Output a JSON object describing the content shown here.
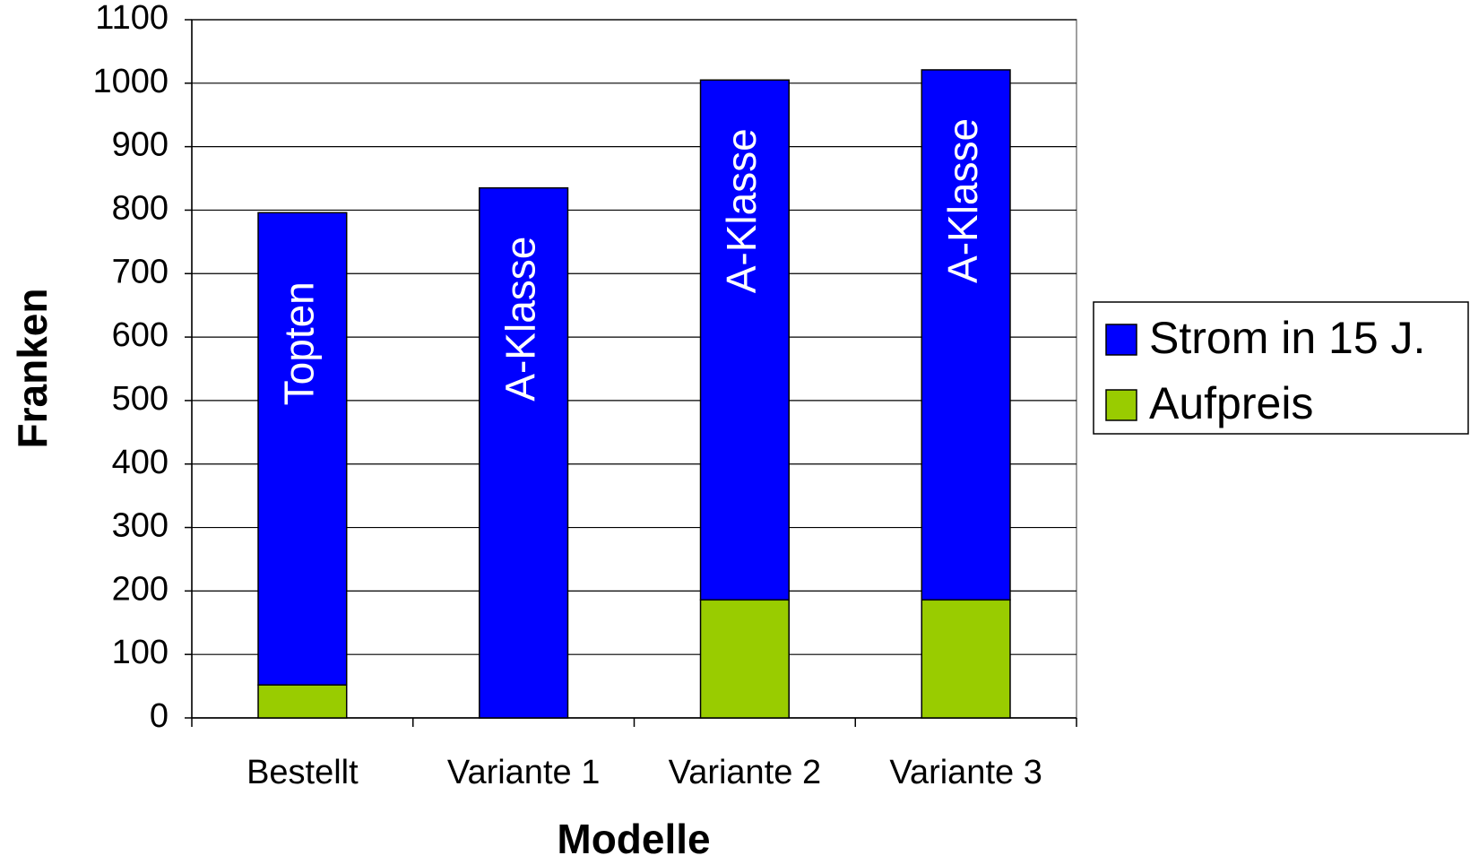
{
  "chart_data": {
    "type": "stacked_bar",
    "x_label": "Modelle",
    "y_label": "Franken",
    "categories": [
      "Bestellt",
      "Variante 1",
      "Variante 2",
      "Variante 3"
    ],
    "series": [
      {
        "name": "Strom in 15 J.",
        "color": "#0000ff",
        "values": [
          744,
          835,
          819,
          835
        ]
      },
      {
        "name": "Aufpreis",
        "color": "#99cc00",
        "values": [
          52,
          0,
          186,
          186
        ]
      }
    ],
    "bar_labels": [
      "Topten",
      "A-Klasse",
      "A-Klasse",
      "A-Klasse"
    ],
    "ylim": [
      0,
      1100
    ],
    "yticks": [
      0,
      100,
      200,
      300,
      400,
      500,
      600,
      700,
      800,
      900,
      1000,
      1100
    ],
    "grid": true,
    "legend": "right"
  }
}
